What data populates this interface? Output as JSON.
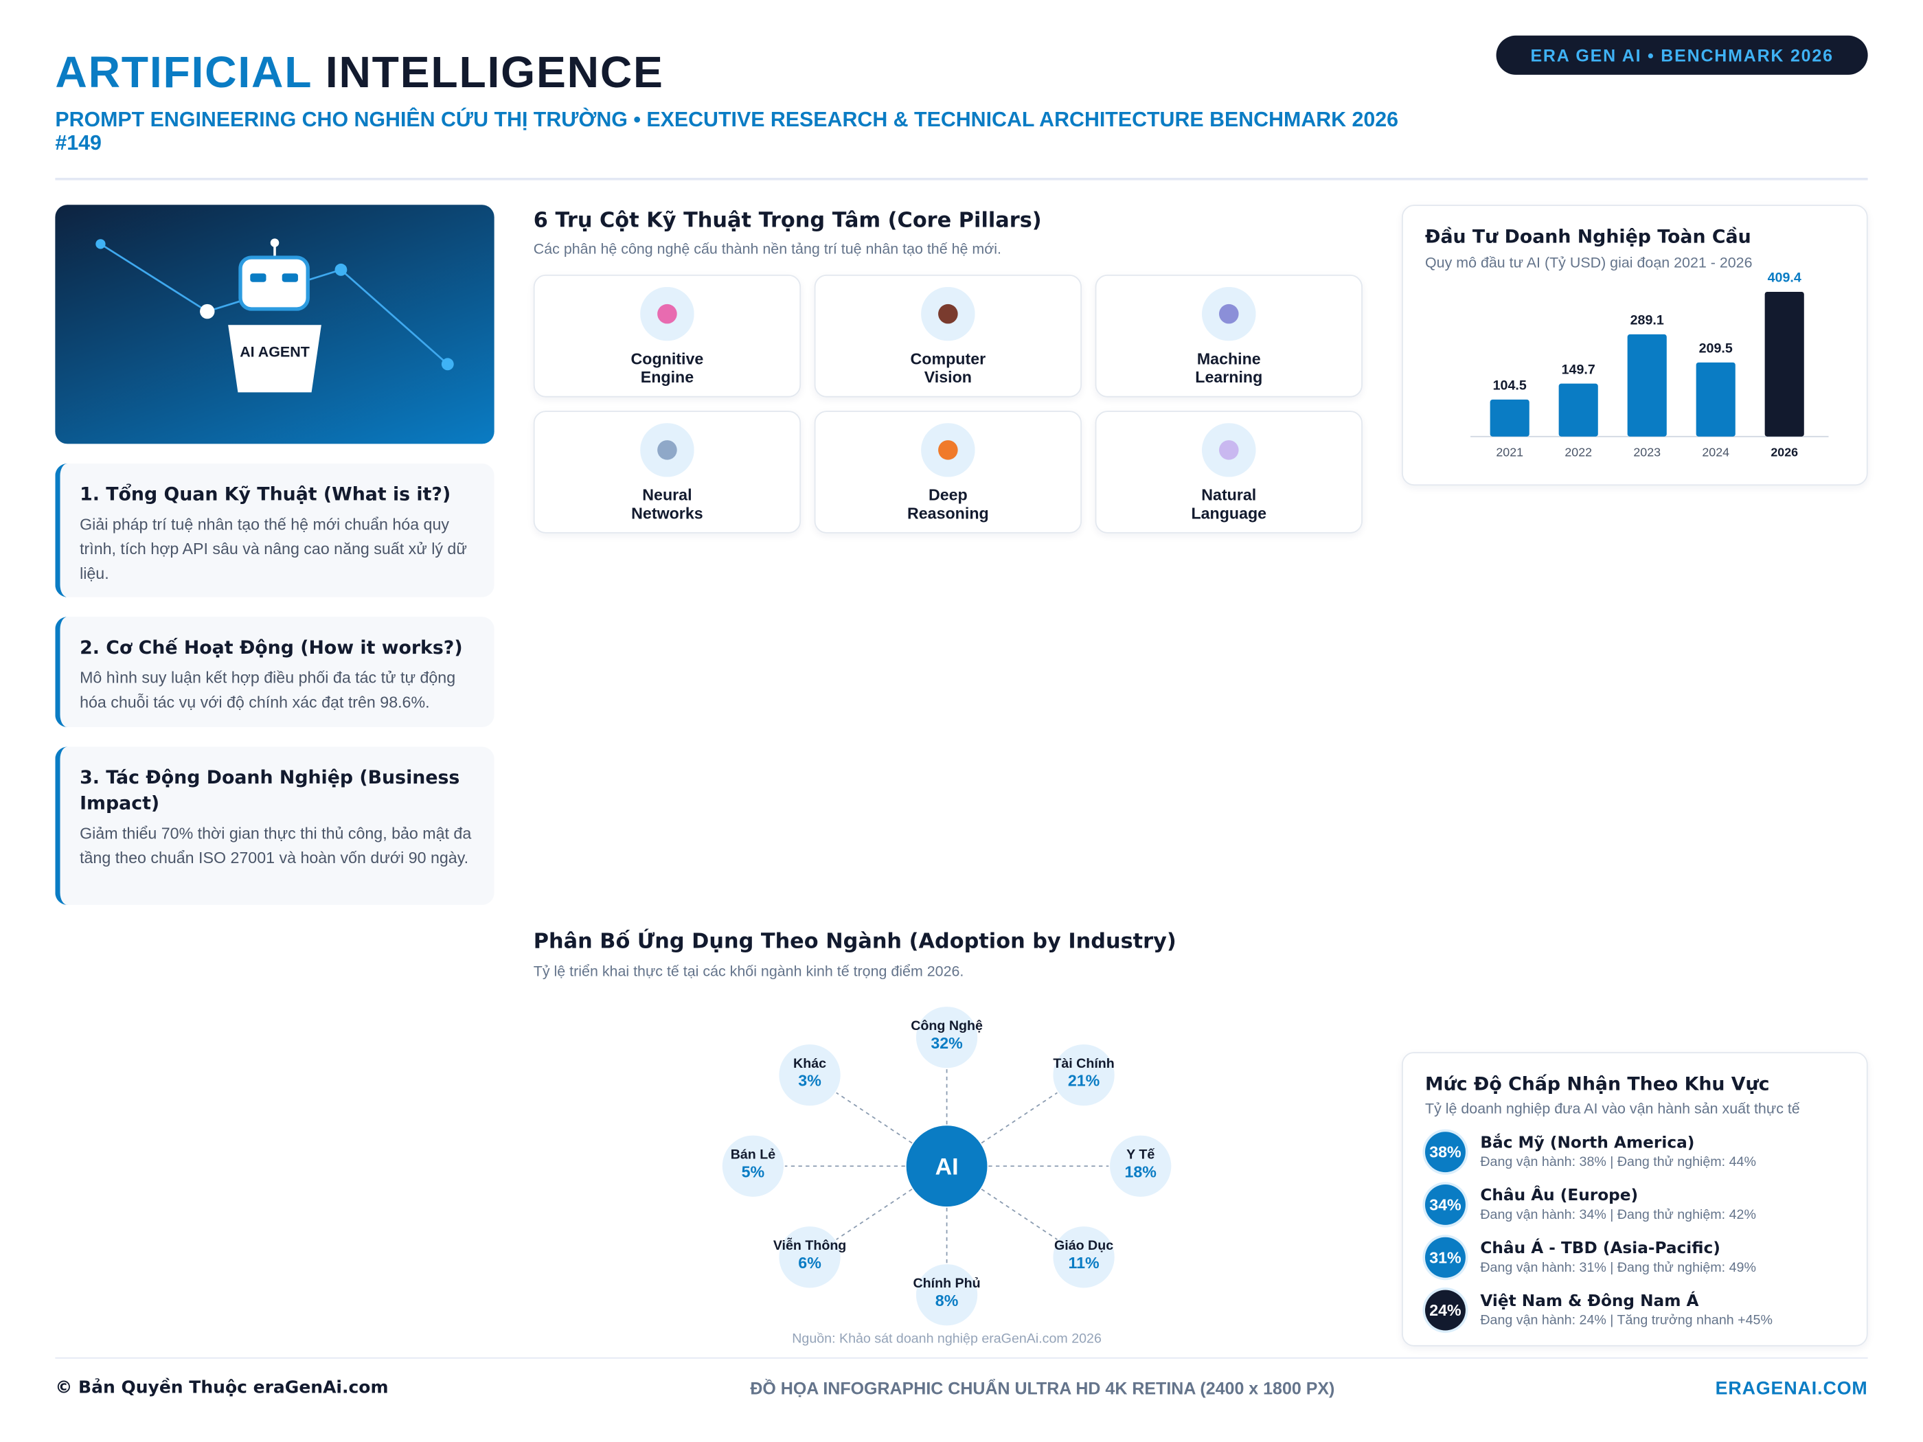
{
  "header": {
    "title_accent": "ARTIFICIAL",
    "title_rest": "INTELLIGENCE",
    "subtitle": "PROMPT ENGINEERING CHO NGHIÊN CỨU THỊ TRƯỜNG • EXECUTIVE RESEARCH & TECHNICAL ARCHITECTURE BENCHMARK 2026",
    "id": "#149",
    "badge": "ERA GEN AI • BENCHMARK 2026"
  },
  "hero": {
    "label": "AI AGENT"
  },
  "sections": [
    {
      "title": "1. Tổng Quan Kỹ Thuật (What is it?)",
      "body": "Giải pháp trí tuệ nhân tạo thế hệ mới chuẩn hóa quy trình, tích hợp API sâu và nâng cao năng suất xử lý dữ liệu."
    },
    {
      "title": "2. Cơ Chế Hoạt Động (How it works?)",
      "body": "Mô hình suy luận kết hợp điều phối đa tác tử tự động hóa chuỗi tác vụ với độ chính xác đạt trên 98.6%."
    },
    {
      "title": "3. Tác Động Doanh Nghiệp (Business Impact)",
      "body": "Giảm thiểu 70% thời gian thực thi thủ công, bảo mật đa tầng theo chuẩn ISO 27001 và hoàn vốn dưới 90 ngày."
    }
  ],
  "pillars": {
    "title": "6 Trụ Cột Kỹ Thuật Trọng Tâm (Core Pillars)",
    "subtitle": "Các phân hệ công nghệ cấu thành nền tảng trí tuệ nhân tạo thế hệ mới.",
    "items": [
      "Cognitive Engine",
      "Computer Vision",
      "Machine Learning",
      "Neural Networks",
      "Deep Reasoning",
      "Natural Language"
    ]
  },
  "chart_data": {
    "type": "bar",
    "title": "Đầu Tư Doanh Nghiệp Toàn Cầu",
    "subtitle": "Quy mô đầu tư AI (Tỷ USD) giai đoạn 2021 - 2026",
    "categories": [
      "2021",
      "2022",
      "2023",
      "2024",
      "2026"
    ],
    "values": [
      104.5,
      149.7,
      289.1,
      209.5,
      409.4
    ],
    "colors": [
      "#0a7cc4",
      "#0a7cc4",
      "#0a7cc4",
      "#0a7cc4",
      "#121a2e"
    ]
  },
  "industry": {
    "title": "Phân Bố Ứng Dụng Theo Ngành (Adoption by Industry)",
    "subtitle": "Tỷ lệ triển khai thực tế tại các khối ngành kinh tế trọng điểm 2026.",
    "center": "AI",
    "nodes": [
      {
        "label": "Công Nghệ",
        "value": 32,
        "value_label": "32%"
      },
      {
        "label": "Tài Chính",
        "value": 21,
        "value_label": "21%"
      },
      {
        "label": "Y Tế",
        "value": 18,
        "value_label": "18%"
      },
      {
        "label": "Giáo Dục",
        "value": 11,
        "value_label": "11%"
      },
      {
        "label": "Chính Phủ",
        "value": 8,
        "value_label": "8%"
      },
      {
        "label": "Viễn Thông",
        "value": 6,
        "value_label": "6%"
      },
      {
        "label": "Bán Lẻ",
        "value": 5,
        "value_label": "5%"
      },
      {
        "label": "Khác",
        "value": 3,
        "value_label": "3%"
      }
    ],
    "source": "Nguồn: Khảo sát doanh nghiệp eraGenAi.com 2026"
  },
  "regions": {
    "title": "Mức Độ Chấp Nhận Theo Khu Vực",
    "subtitle": "Tỷ lệ doanh nghiệp đưa AI vào vận hành sản xuất thực tế",
    "items": [
      {
        "value": 38,
        "value_label": "38%",
        "name": "Bắc Mỹ (North America)",
        "detail": "Đang vận hành: 38% | Đang thử nghiệm: 44%",
        "color": "#0a7cc4"
      },
      {
        "value": 34,
        "value_label": "34%",
        "name": "Châu Âu (Europe)",
        "detail": "Đang vận hành: 34% | Đang thử nghiệm: 42%",
        "color": "#0a7cc4"
      },
      {
        "value": 31,
        "value_label": "31%",
        "name": "Châu Á - TBD (Asia-Pacific)",
        "detail": "Đang vận hành: 31% | Đang thử nghiệm: 49%",
        "color": "#0a7cc4"
      },
      {
        "value": 24,
        "value_label": "24%",
        "name": "Việt Nam & Đông Nam Á",
        "detail": "Đang vận hành: 24% | Tăng trưởng nhanh +45%",
        "color": "#121a2e"
      }
    ]
  },
  "footer": {
    "left": "© Bản Quyền Thuộc eraGenAi.com",
    "center": "ĐỒ HỌA INFOGRAPHIC CHUẨN ULTRA HD 4K RETINA (2400 x 1800 PX)",
    "right": "ERAGENAI.COM"
  }
}
